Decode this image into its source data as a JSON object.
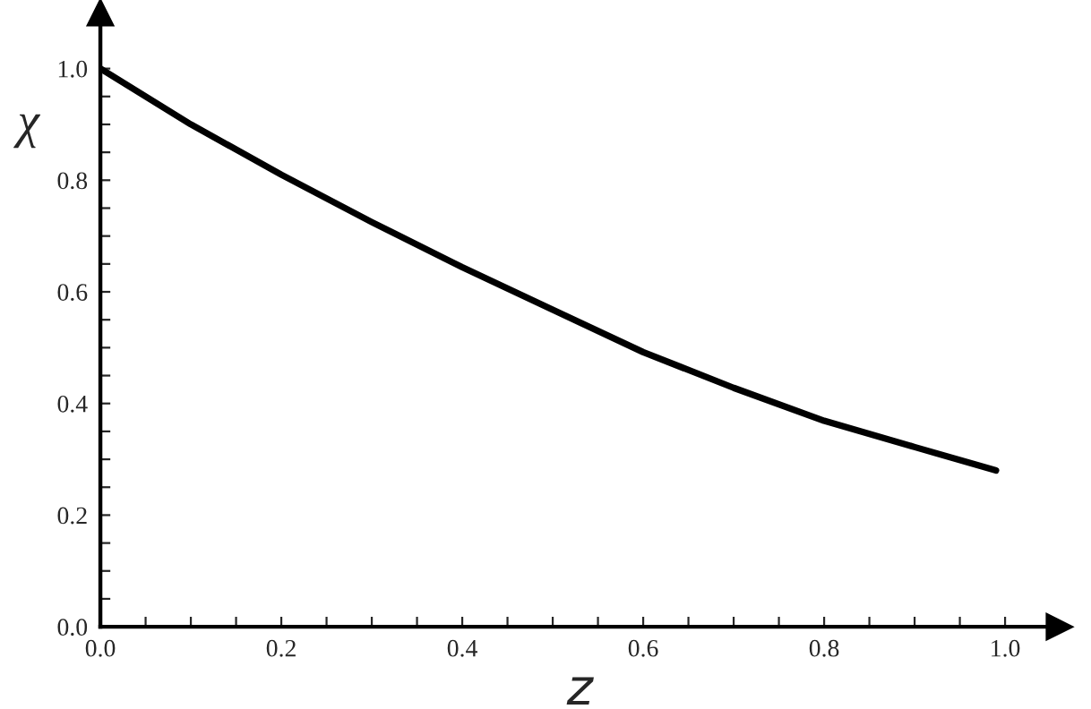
{
  "chart_data": {
    "type": "line",
    "xlabel": "z",
    "ylabel": "χ",
    "x": [
      0,
      0.1,
      0.2,
      0.3,
      0.4,
      0.5,
      0.6,
      0.7,
      0.8,
      0.9,
      0.99
    ],
    "series": [
      {
        "color": "#000000",
        "values": [
          1.0,
          0.9,
          0.81,
          0.725,
          0.644,
          0.568,
          0.492,
          0.428,
          0.369,
          0.322,
          0.28
        ]
      }
    ],
    "xlim": [
      0,
      1.06
    ],
    "ylim": [
      0,
      1.1
    ],
    "xticks": [
      {
        "value": 0,
        "label": "0.0"
      },
      {
        "value": 0.05,
        "label": null
      },
      {
        "value": 0.1,
        "label": null
      },
      {
        "value": 0.15,
        "label": null
      },
      {
        "value": 0.2,
        "label": "0.2"
      },
      {
        "value": 0.25,
        "label": null
      },
      {
        "value": 0.3,
        "label": null
      },
      {
        "value": 0.35,
        "label": null
      },
      {
        "value": 0.4,
        "label": "0.4"
      },
      {
        "value": 0.45,
        "label": null
      },
      {
        "value": 0.5,
        "label": null
      },
      {
        "value": 0.55,
        "label": null
      },
      {
        "value": 0.6,
        "label": "0.6"
      },
      {
        "value": 0.65,
        "label": null
      },
      {
        "value": 0.7,
        "label": null
      },
      {
        "value": 0.75,
        "label": null
      },
      {
        "value": 0.8,
        "label": "0.8"
      },
      {
        "value": 0.85,
        "label": null
      },
      {
        "value": 0.9,
        "label": null
      },
      {
        "value": 0.95,
        "label": null
      },
      {
        "value": 1.0,
        "label": "1.0"
      }
    ],
    "yticks": [
      {
        "value": 0,
        "label": "0.0"
      },
      {
        "value": 0.05,
        "label": null
      },
      {
        "value": 0.1,
        "label": null
      },
      {
        "value": 0.15,
        "label": null
      },
      {
        "value": 0.2,
        "label": "0.2"
      },
      {
        "value": 0.25,
        "label": null
      },
      {
        "value": 0.3,
        "label": null
      },
      {
        "value": 0.35,
        "label": null
      },
      {
        "value": 0.4,
        "label": "0.4"
      },
      {
        "value": 0.45,
        "label": null
      },
      {
        "value": 0.5,
        "label": null
      },
      {
        "value": 0.55,
        "label": null
      },
      {
        "value": 0.6,
        "label": "0.6"
      },
      {
        "value": 0.65,
        "label": null
      },
      {
        "value": 0.7,
        "label": null
      },
      {
        "value": 0.75,
        "label": null
      },
      {
        "value": 0.8,
        "label": "0.8"
      },
      {
        "value": 0.85,
        "label": null
      },
      {
        "value": 0.9,
        "label": null
      },
      {
        "value": 0.95,
        "label": null
      },
      {
        "value": 1.0,
        "label": "1.0"
      }
    ],
    "grid": false,
    "legend": false,
    "marker": "none",
    "line_style": "solid"
  }
}
